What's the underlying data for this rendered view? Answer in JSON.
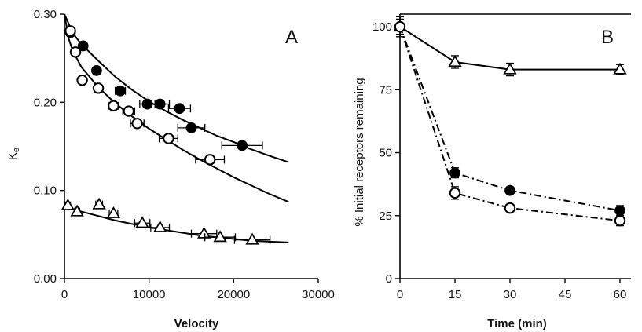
{
  "chart_data": [
    {
      "panel": "A",
      "type": "scatter",
      "xlabel": "Velocity",
      "ylabel": "Ke",
      "xlim": [
        0,
        30000
      ],
      "ylim": [
        0,
        0.3
      ],
      "xticks": [
        0,
        10000,
        20000,
        30000
      ],
      "yticks": [
        0.0,
        0.1,
        0.2,
        0.3
      ],
      "xtick_labels": [
        "0",
        "10000",
        "20000",
        "30000"
      ],
      "ytick_labels": [
        "0.00",
        "0.10",
        "0.20",
        "0.30"
      ],
      "series": [
        {
          "marker": "filled-circle",
          "points": [
            {
              "x": 700,
              "y": 0.279,
              "xerr": 300
            },
            {
              "x": 2200,
              "y": 0.264,
              "xerr": 300
            },
            {
              "x": 3800,
              "y": 0.236,
              "xerr": 350
            },
            {
              "x": 6600,
              "y": 0.213,
              "xerr": 600
            },
            {
              "x": 9800,
              "y": 0.198,
              "xerr": 900
            },
            {
              "x": 11300,
              "y": 0.198,
              "xerr": 1100
            },
            {
              "x": 13600,
              "y": 0.193,
              "xerr": 1300
            },
            {
              "x": 15000,
              "y": 0.171,
              "xerr": 1600
            },
            {
              "x": 21000,
              "y": 0.151,
              "xerr": 2400
            }
          ],
          "fit": [
            [
              0,
              0.3
            ],
            [
              1000,
              0.278
            ],
            [
              2000,
              0.266
            ],
            [
              4000,
              0.247
            ],
            [
              6000,
              0.229
            ],
            [
              8000,
              0.214
            ],
            [
              10000,
              0.201
            ],
            [
              12000,
              0.19
            ],
            [
              14000,
              0.18
            ],
            [
              16000,
              0.171
            ],
            [
              18000,
              0.162
            ],
            [
              20000,
              0.155
            ],
            [
              22000,
              0.147
            ],
            [
              24000,
              0.14
            ],
            [
              26500,
              0.132
            ]
          ]
        },
        {
          "marker": "open-circle",
          "points": [
            {
              "x": 700,
              "y": 0.281,
              "xerr": 300
            },
            {
              "x": 1300,
              "y": 0.257,
              "xerr": 300
            },
            {
              "x": 2100,
              "y": 0.225,
              "xerr": 300
            },
            {
              "x": 4000,
              "y": 0.216,
              "xerr": 350
            },
            {
              "x": 5800,
              "y": 0.196,
              "xerr": 600
            },
            {
              "x": 7600,
              "y": 0.19,
              "xerr": 700
            },
            {
              "x": 8600,
              "y": 0.176,
              "xerr": 800
            },
            {
              "x": 12300,
              "y": 0.159,
              "xerr": 1100
            },
            {
              "x": 17200,
              "y": 0.135,
              "xerr": 1700
            }
          ],
          "fit": [
            [
              0,
              0.3
            ],
            [
              500,
              0.272
            ],
            [
              1000,
              0.258
            ],
            [
              2000,
              0.24
            ],
            [
              4000,
              0.217
            ],
            [
              6000,
              0.199
            ],
            [
              8000,
              0.184
            ],
            [
              10000,
              0.17
            ],
            [
              12000,
              0.158
            ],
            [
              14000,
              0.146
            ],
            [
              16000,
              0.135
            ],
            [
              18000,
              0.125
            ],
            [
              20000,
              0.115
            ],
            [
              22000,
              0.106
            ],
            [
              24000,
              0.097
            ],
            [
              26500,
              0.087
            ]
          ]
        },
        {
          "marker": "open-triangle",
          "points": [
            {
              "x": 400,
              "y": 0.083,
              "xerr": 300
            },
            {
              "x": 1500,
              "y": 0.076,
              "xerr": 300
            },
            {
              "x": 4100,
              "y": 0.084,
              "xerr": 400
            },
            {
              "x": 5800,
              "y": 0.074,
              "xerr": 500
            },
            {
              "x": 9200,
              "y": 0.063,
              "xerr": 900
            },
            {
              "x": 11300,
              "y": 0.058,
              "xerr": 1100
            },
            {
              "x": 16500,
              "y": 0.051,
              "xerr": 1500
            },
            {
              "x": 18400,
              "y": 0.047,
              "xerr": 1800
            },
            {
              "x": 22200,
              "y": 0.044,
              "xerr": 2100
            }
          ],
          "fit": [
            [
              0,
              0.082
            ],
            [
              2000,
              0.076
            ],
            [
              4000,
              0.071
            ],
            [
              6000,
              0.066
            ],
            [
              8000,
              0.062
            ],
            [
              10000,
              0.058
            ],
            [
              12000,
              0.055
            ],
            [
              14000,
              0.052
            ],
            [
              16000,
              0.049
            ],
            [
              18000,
              0.047
            ],
            [
              20000,
              0.045
            ],
            [
              22000,
              0.043
            ],
            [
              24000,
              0.042
            ],
            [
              26500,
              0.041
            ]
          ]
        }
      ]
    },
    {
      "panel": "B",
      "type": "line",
      "xlabel": "Time (min)",
      "ylabel": "% Initial receptors remaining",
      "xlim": [
        0,
        63
      ],
      "ylim": [
        0,
        105
      ],
      "xticks": [
        0,
        15,
        30,
        45,
        60
      ],
      "yticks": [
        0,
        25,
        50,
        75,
        100
      ],
      "xtick_labels": [
        "0",
        "15",
        "30",
        "45",
        "60"
      ],
      "ytick_labels": [
        "0",
        "25",
        "50",
        "75",
        "100"
      ],
      "series": [
        {
          "marker": "open-triangle",
          "line": "solid",
          "x": [
            0,
            15,
            30,
            60
          ],
          "values": [
            100,
            86,
            83,
            83
          ],
          "yerr": [
            3,
            2.5,
            2.5,
            2
          ]
        },
        {
          "marker": "filled-circle",
          "line": "dash-dot",
          "x": [
            0,
            15,
            30,
            60
          ],
          "values": [
            100,
            42,
            35,
            27
          ],
          "yerr": [
            4,
            2,
            1,
            2
          ]
        },
        {
          "marker": "open-circle",
          "line": "dash-dot",
          "x": [
            0,
            15,
            30,
            60
          ],
          "values": [
            100,
            34,
            28,
            23
          ],
          "yerr": [
            4,
            2.5,
            1,
            2
          ]
        }
      ]
    }
  ]
}
